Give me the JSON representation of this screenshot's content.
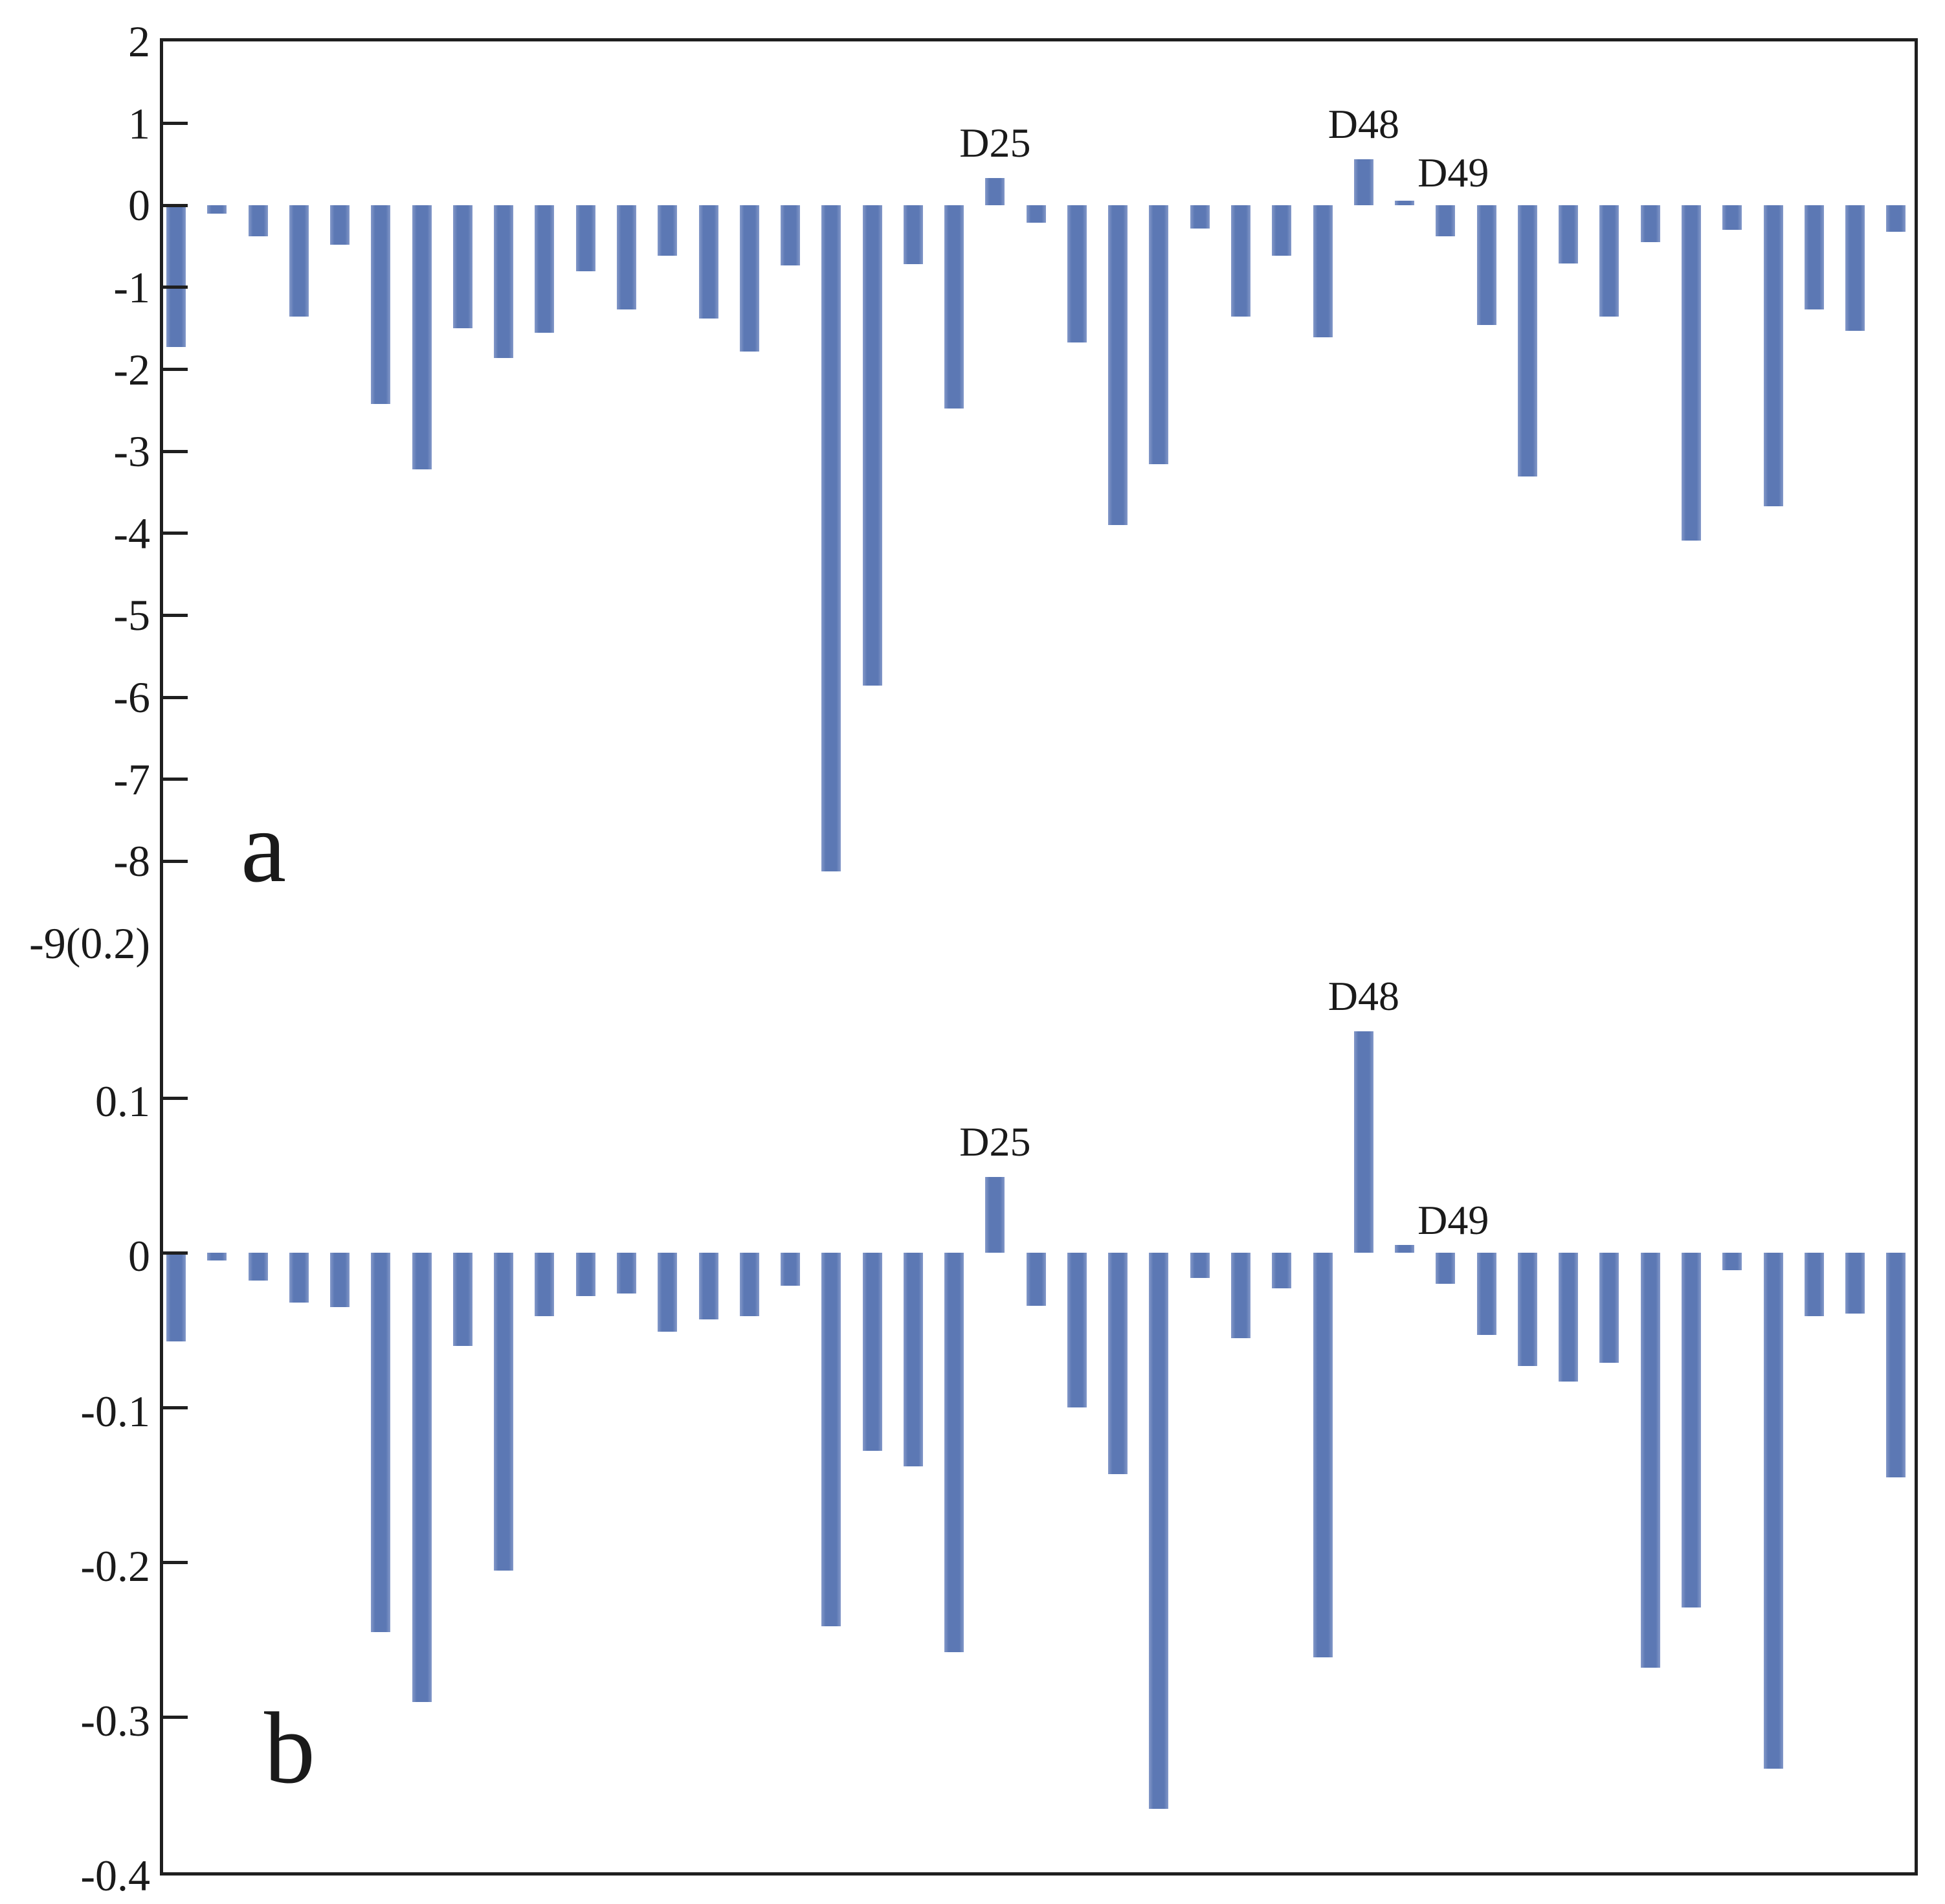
{
  "figure": {
    "background": "#ffffff",
    "bar_color": "#5c78b4",
    "border_color": "#1f1f1f",
    "bar_count_per_panel": 43
  },
  "chart_data": [
    {
      "type": "bar",
      "panel_letter": "a",
      "title": "",
      "xlabel": "",
      "ylabel": "",
      "ylim": [
        -9,
        2
      ],
      "grid": false,
      "legend": "none",
      "ytick_values": [
        2,
        1,
        0,
        -1,
        -2,
        -3,
        -4,
        -5,
        -6,
        -7,
        -8
      ],
      "ytick_labels": [
        "2",
        "1",
        "0",
        "-1",
        "-2",
        "-3",
        "-4",
        "-5",
        "-6",
        "-7",
        "-8"
      ],
      "corner_label": "-9(0.2)",
      "values": [
        -1.73,
        -0.1,
        -0.38,
        -1.36,
        -0.48,
        -2.42,
        -3.22,
        -1.5,
        -1.86,
        -1.55,
        -0.8,
        -1.27,
        -0.61,
        -1.38,
        -1.78,
        -0.73,
        -8.12,
        -5.86,
        -0.72,
        -2.48,
        0.33,
        -0.21,
        -1.67,
        -3.9,
        -3.16,
        -0.28,
        -1.36,
        -0.61,
        -1.61,
        0.56,
        0.06,
        -0.38,
        -1.46,
        -3.31,
        -0.71,
        -1.36,
        -0.45,
        -4.09,
        -0.3,
        -3.67,
        -1.27,
        -1.53,
        -0.32
      ],
      "annotations": [
        {
          "text": "D25",
          "bar": 20,
          "placement": "above"
        },
        {
          "text": "D48",
          "bar": 29,
          "placement": "above"
        },
        {
          "text": "D49",
          "bar": 30,
          "placement": "right"
        }
      ]
    },
    {
      "type": "bar",
      "panel_letter": "b",
      "title": "",
      "xlabel": "",
      "ylabel": "",
      "ylim": [
        -0.4,
        0.2
      ],
      "grid": false,
      "legend": "none",
      "ytick_values": [
        0.1,
        0,
        -0.1,
        -0.2,
        -0.3,
        -0.4
      ],
      "ytick_labels": [
        "0.1",
        "0",
        "-0.1",
        "-0.2",
        "-0.3",
        "-0.4"
      ],
      "corner_label": "",
      "values": [
        -0.057,
        -0.005,
        -0.018,
        -0.032,
        -0.035,
        -0.245,
        -0.29,
        -0.06,
        -0.205,
        -0.041,
        -0.028,
        -0.026,
        -0.051,
        -0.043,
        -0.041,
        -0.021,
        -0.241,
        -0.128,
        -0.138,
        -0.258,
        0.049,
        -0.034,
        -0.1,
        -0.143,
        -0.359,
        -0.016,
        -0.055,
        -0.023,
        -0.261,
        0.143,
        0.005,
        -0.02,
        -0.053,
        -0.073,
        -0.083,
        -0.071,
        -0.268,
        -0.229,
        -0.011,
        -0.333,
        -0.041,
        -0.039,
        -0.145
      ],
      "annotations": [
        {
          "text": "D25",
          "bar": 20,
          "placement": "above"
        },
        {
          "text": "D48",
          "bar": 29,
          "placement": "above"
        },
        {
          "text": "D49",
          "bar": 30,
          "placement": "right"
        }
      ]
    }
  ]
}
